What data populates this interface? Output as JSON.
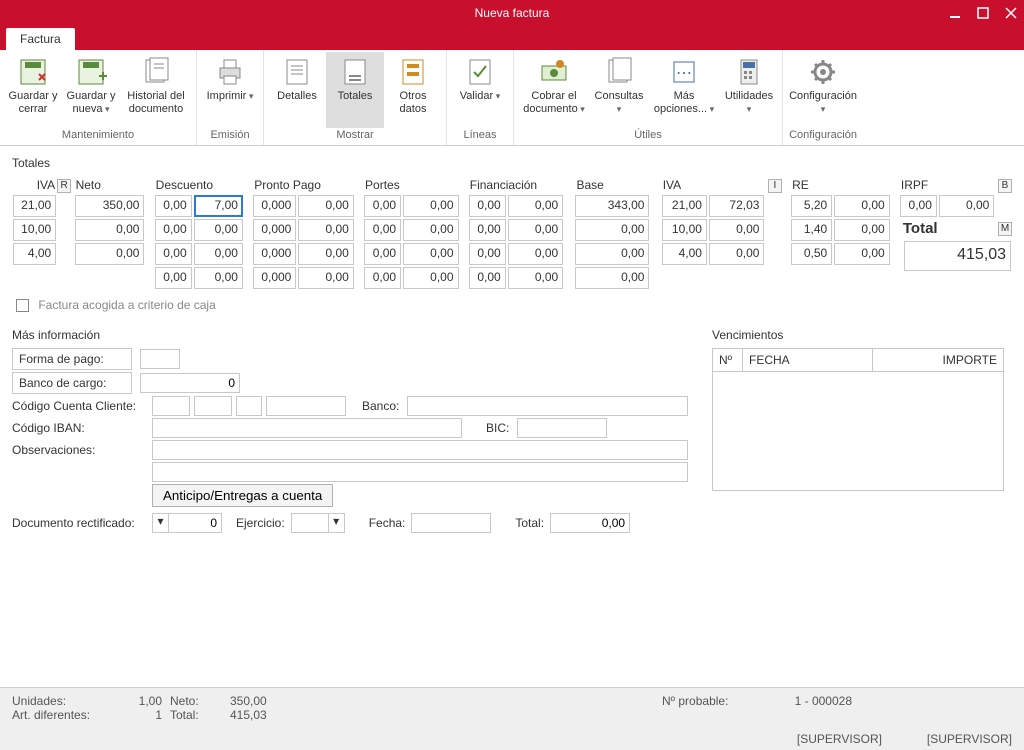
{
  "window": {
    "title": "Nueva factura"
  },
  "tabs": {
    "main": "Factura"
  },
  "ribbon": {
    "groups": [
      {
        "label": "Mantenimiento",
        "items": [
          {
            "name": "guardar-cerrar",
            "label": "Guardar y cerrar",
            "icon": "save-close"
          },
          {
            "name": "guardar-nueva",
            "label": "Guardar y nueva",
            "icon": "save-new",
            "dd": true
          },
          {
            "name": "historial",
            "label": "Historial del documento",
            "icon": "history",
            "wide": true
          }
        ]
      },
      {
        "label": "Emisión",
        "items": [
          {
            "name": "imprimir",
            "label": "Imprimir",
            "icon": "print",
            "dd": true
          }
        ]
      },
      {
        "label": "Mostrar",
        "items": [
          {
            "name": "detalles",
            "label": "Detalles",
            "icon": "detail"
          },
          {
            "name": "totales",
            "label": "Totales",
            "icon": "totals",
            "selected": true
          },
          {
            "name": "otros-datos",
            "label": "Otros datos",
            "icon": "other"
          }
        ]
      },
      {
        "label": "Líneas",
        "items": [
          {
            "name": "validar",
            "label": "Validar",
            "icon": "validate",
            "dd": true
          }
        ]
      },
      {
        "label": "Útiles",
        "items": [
          {
            "name": "cobrar",
            "label": "Cobrar el documento",
            "icon": "cash",
            "dd": true,
            "wide": true
          },
          {
            "name": "consultas",
            "label": "Consultas",
            "icon": "query",
            "dd": true
          },
          {
            "name": "mas-opciones",
            "label": "Más opciones...",
            "icon": "more",
            "dd": true,
            "wide": true
          },
          {
            "name": "utilidades",
            "label": "Utilidades",
            "icon": "util",
            "dd": true
          }
        ]
      },
      {
        "label": "Configuración",
        "items": [
          {
            "name": "configuracion",
            "label": "Configuración",
            "icon": "gear",
            "dd": true,
            "wide": true
          }
        ]
      }
    ]
  },
  "totales": {
    "title": "Totales",
    "headers": {
      "iva": "IVA",
      "neto": "Neto",
      "descuento": "Descuento",
      "pronto": "Pronto Pago",
      "portes": "Portes",
      "finan": "Financiación",
      "base": "Base",
      "iva2": "IVA",
      "re": "RE",
      "irpf": "IRPF"
    },
    "btns": {
      "r": "R",
      "i": "I",
      "b": "B",
      "m": "M"
    },
    "rows": [
      {
        "iva": "21,00",
        "neto": "350,00",
        "desc_p": "0,00",
        "desc_v": "7,00",
        "pp_p": "0,000",
        "pp_v": "0,00",
        "por_p": "0,00",
        "por_v": "0,00",
        "fin_p": "0,00",
        "fin_v": "0,00",
        "base": "343,00",
        "iva2_p": "21,00",
        "iva2_v": "72,03",
        "re_p": "5,20",
        "re_v": "0,00",
        "irpf_p": "0,00",
        "irpf_v": "0,00"
      },
      {
        "iva": "10,00",
        "neto": "0,00",
        "desc_p": "0,00",
        "desc_v": "0,00",
        "pp_p": "0,000",
        "pp_v": "0,00",
        "por_p": "0,00",
        "por_v": "0,00",
        "fin_p": "0,00",
        "fin_v": "0,00",
        "base": "0,00",
        "iva2_p": "10,00",
        "iva2_v": "0,00",
        "re_p": "1,40",
        "re_v": "0,00"
      },
      {
        "iva": "4,00",
        "neto": "0,00",
        "desc_p": "0,00",
        "desc_v": "0,00",
        "pp_p": "0,000",
        "pp_v": "0,00",
        "por_p": "0,00",
        "por_v": "0,00",
        "fin_p": "0,00",
        "fin_v": "0,00",
        "base": "0,00",
        "iva2_p": "4,00",
        "iva2_v": "0,00",
        "re_p": "0,50",
        "re_v": "0,00"
      },
      {
        "desc_p": "0,00",
        "desc_v": "0,00",
        "pp_p": "0,000",
        "pp_v": "0,00",
        "por_p": "0,00",
        "por_v": "0,00",
        "fin_p": "0,00",
        "fin_v": "0,00",
        "base": "0,00"
      }
    ],
    "criterio_caja": "Factura acogida a criterio de caja",
    "total_label": "Total",
    "total_value": "415,03"
  },
  "masinfo": {
    "title": "Más información",
    "forma_pago": "Forma de pago:",
    "banco_cargo": "Banco de cargo:",
    "banco_cargo_val": "0",
    "ccc": "Código Cuenta Cliente:",
    "banco": "Banco:",
    "iban": "Código IBAN:",
    "bic": "BIC:",
    "obs": "Observaciones:",
    "anticipo_btn": "Anticipo/Entregas a cuenta",
    "doc_rect": "Documento rectificado:",
    "doc_rect_val": "0",
    "ejercicio": "Ejercicio:",
    "fecha": "Fecha:",
    "total": "Total:",
    "total_val": "0,00"
  },
  "venc": {
    "title": "Vencimientos",
    "cols": {
      "n": "Nº",
      "fecha": "FECHA",
      "importe": "IMPORTE"
    }
  },
  "status": {
    "unidades_l": "Unidades:",
    "unidades_v": "1,00",
    "neto_l": "Neto:",
    "neto_v": "350,00",
    "art_l": "Art. diferentes:",
    "art_v": "1",
    "total_l": "Total:",
    "total_v": "415,03",
    "prob_l": "Nº probable:",
    "prob_v": "1 - 000028",
    "sup1": "[SUPERVISOR]",
    "sup2": "[SUPERVISOR]"
  },
  "colors": {
    "accent": "#c8102e"
  }
}
